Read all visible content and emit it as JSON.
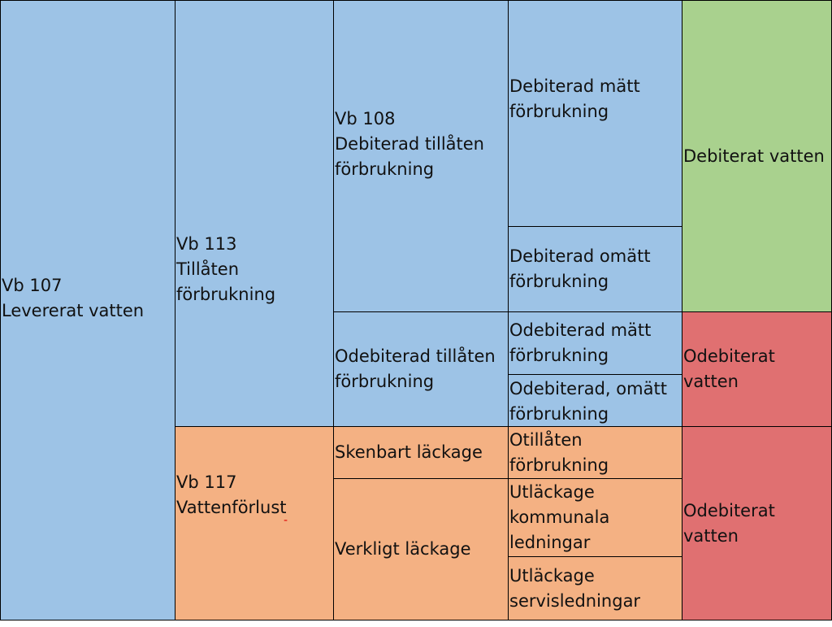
{
  "col1": {
    "levererat": "Vb 107\n Levererat vatten"
  },
  "col2": {
    "tillaten": "Vb 113\nTillåten\nförbrukning",
    "vattenforlust": "Vb 117\nVattenförlust",
    "mark": "-"
  },
  "col3": {
    "debiterad_tillaten": "Vb 108\nDebiterad tillåten\nförbrukning",
    "odebiterad_tillaten": "Odebiterad tillåten\nförbrukning",
    "skenbart": "Skenbart läckage",
    "verkligt": "Verkligt läckage"
  },
  "col4": {
    "debiterad_matt": "Debiterad mätt\nförbrukning",
    "debiterad_omatt": "Debiterad omätt\nförbrukning",
    "odebiterad_matt": "Odebiterad mätt\nförbrukning",
    "odebiterad_omatt": "Odebiterad, omätt\nförbrukning",
    "otillaten": "Otillåten\nförbrukning",
    "utlackage_kommunala": "Utläckage\nkommunala\nledningar",
    "utlackage_service": "Utläckage\nservisledningar"
  },
  "col5": {
    "debiterat": "Debiterat vatten",
    "odebiterat_1": "Odebiterat\nvatten",
    "odebiterat_2": "Odebiterat\nvatten"
  },
  "colors": {
    "blue": "#9dc3e6",
    "green": "#a9d18e",
    "red": "#e07071",
    "orange": "#f4b183"
  }
}
